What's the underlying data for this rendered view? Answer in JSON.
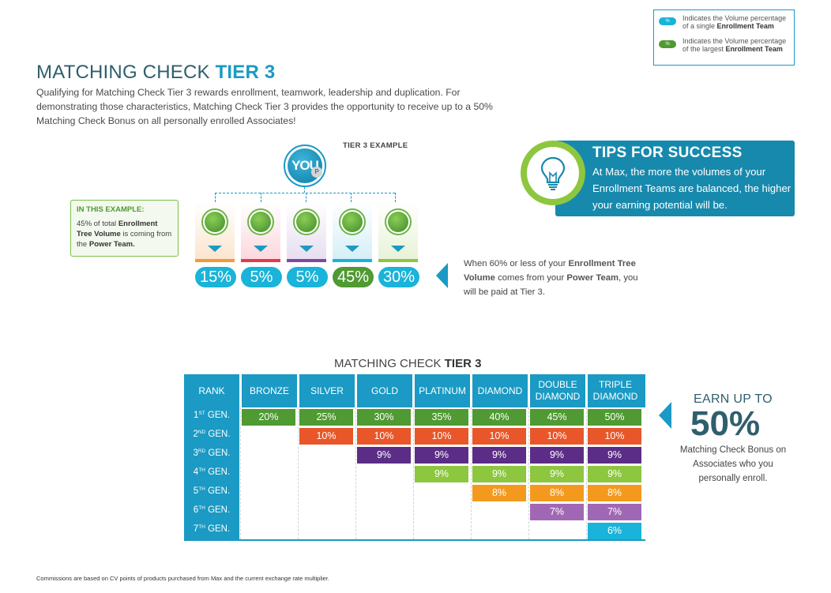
{
  "legend": {
    "items": [
      {
        "swatch_text": "%",
        "color": "#1ab3d9",
        "text_before": "Indicates the Volume percentage of a single ",
        "text_bold": "Enrollment Team"
      },
      {
        "swatch_text": "%",
        "color": "#4f9a32",
        "text_before": "Indicates the Volume percentage of the largest ",
        "text_bold": "Enrollment Team"
      }
    ]
  },
  "title": {
    "main": "MATCHING CHECK ",
    "bold": "TIER 3"
  },
  "intro": "Qualifying for Matching Check Tier 3 rewards enrollment, teamwork, leadership and duplication. For demonstrating those characteristics, Matching Check Tier 3 provides the opportunity to receive up to a 50% Matching Check Bonus on all personally enrolled Associates!",
  "example": {
    "label": "TIER 3 EXAMPLE",
    "you_text": "YOU",
    "you_badge": "P",
    "teams": [
      {
        "pct": "15%",
        "card_color": "#fbe3cc",
        "bar_color": "#f39a3a",
        "pill_color": "#1ab3d9"
      },
      {
        "pct": "5%",
        "card_color": "#fbd6dc",
        "bar_color": "#e4394f",
        "pill_color": "#1ab3d9"
      },
      {
        "pct": "5%",
        "card_color": "#e6dcef",
        "bar_color": "#7d4a9e",
        "pill_color": "#1ab3d9"
      },
      {
        "pct": "45%",
        "card_color": "#d3eef7",
        "bar_color": "#1ab3d9",
        "pill_color": "#4f9a32"
      },
      {
        "pct": "30%",
        "card_color": "#e6f2d5",
        "bar_color": "#8dc63f",
        "pill_color": "#1ab3d9"
      }
    ]
  },
  "in_example": {
    "title": "IN THIS EXAMPLE:",
    "text_1": "45% of total ",
    "bold_1": "Enrollment Tree Volume",
    "text_2": " is coming from the ",
    "bold_2": "Power Team."
  },
  "tips": {
    "title": "TIPS FOR SUCCESS",
    "text": "At Max, the more the volumes of your Enrollment Teams are balanced, the higher your earning potential will be."
  },
  "note60": {
    "t1": "When 60% or less of your ",
    "b1": "Enrollment Tree Volume",
    "t2": " comes from your ",
    "b2": "Power Team",
    "t3": ", you will be paid at Tier 3."
  },
  "matrix": {
    "title_main": "MATCHING CHECK ",
    "title_bold": "TIER 3",
    "rank_header": "RANK",
    "ranks": [
      "BRONZE",
      "SILVER",
      "GOLD",
      "PLATINUM",
      "DIAMOND",
      "DOUBLE DIAMOND",
      "TRIPLE DIAMOND"
    ],
    "generations": [
      {
        "num": "1",
        "sup": "ST",
        "suffix": " GEN.",
        "color": "#4f9a32",
        "start": 0,
        "value": "20%",
        "values": [
          "20%",
          "25%",
          "30%",
          "35%",
          "40%",
          "45%",
          "50%"
        ]
      },
      {
        "num": "2",
        "sup": "ND",
        "suffix": " GEN.",
        "color": "#e8562a",
        "start": 1,
        "values": [
          "10%",
          "10%",
          "10%",
          "10%",
          "10%",
          "10%"
        ]
      },
      {
        "num": "3",
        "sup": "RD",
        "suffix": " GEN.",
        "color": "#5b2d86",
        "start": 2,
        "values": [
          "9%",
          "9%",
          "9%",
          "9%",
          "9%"
        ]
      },
      {
        "num": "4",
        "sup": "TH",
        "suffix": " GEN.",
        "color": "#8dc63f",
        "start": 3,
        "values": [
          "9%",
          "9%",
          "9%",
          "9%"
        ]
      },
      {
        "num": "5",
        "sup": "TH",
        "suffix": " GEN.",
        "color": "#f39a1e",
        "start": 4,
        "values": [
          "8%",
          "8%",
          "8%"
        ]
      },
      {
        "num": "6",
        "sup": "TH",
        "suffix": " GEN.",
        "color": "#a068b4",
        "start": 5,
        "values": [
          "7%",
          "7%"
        ]
      },
      {
        "num": "7",
        "sup": "TH",
        "suffix": " GEN.",
        "color": "#1ab3d9",
        "start": 6,
        "values": [
          "6%"
        ]
      }
    ]
  },
  "earn": {
    "label": "EARN UP TO",
    "pct": "50%",
    "sub": "Matching Check Bonus on Associates who you personally enroll."
  },
  "footnote": "Commissions are based on CV points of products purchased from Max and the current exchange rate multiplier."
}
